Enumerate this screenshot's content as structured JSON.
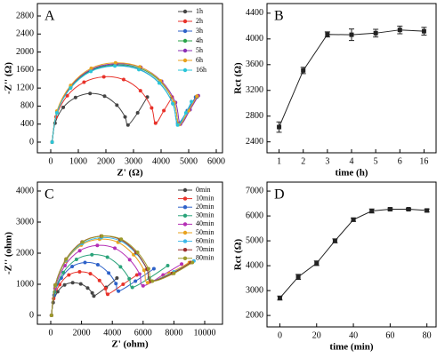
{
  "chart_data": [
    {
      "type": "line",
      "annotation": "A",
      "xlabel": "Z' (Ω)",
      "ylabel": "-Z'' (Ω)",
      "xlim": [
        -484,
        6226
      ],
      "xticks": [
        0,
        1000,
        2000,
        3000,
        4000,
        5000,
        6000
      ],
      "ylim": [
        -237,
        3076
      ],
      "yticks": [
        0,
        400,
        800,
        1200,
        1600,
        2000,
        2400,
        2800
      ],
      "legend": "upper right",
      "series": [
        {
          "name": "1h",
          "color": "#444444",
          "x": [
            50,
            155,
            453,
            899,
            1425,
            1951,
            2397,
            2695,
            2800,
            3150,
            3500
          ],
          "values": [
            0,
            420,
            770,
            990,
            1080,
            1020,
            820,
            560,
            380,
            650,
            1000
          ]
        },
        {
          "name": "2h",
          "color": "#e8322a",
          "x": [
            50,
            192,
            599,
            1207,
            1925,
            2643,
            3251,
            3658,
            3800,
            4100,
            4400
          ],
          "values": [
            0,
            560,
            1030,
            1330,
            1450,
            1390,
            1140,
            760,
            420,
            700,
            1000
          ]
        },
        {
          "name": "3h",
          "color": "#2e62c9",
          "x": [
            50,
            223,
            717,
            1454,
            2325,
            3196,
            3933,
            4427,
            4600,
            4950,
            5250
          ],
          "values": [
            0,
            660,
            1210,
            1580,
            1700,
            1620,
            1320,
            860,
            420,
            700,
            1000
          ]
        },
        {
          "name": "4h",
          "color": "#2aa34a",
          "x": [
            50,
            225,
            724,
            1468,
            2350,
            3232,
            3976,
            4474,
            4650,
            5000,
            5300
          ],
          "values": [
            0,
            670,
            1230,
            1600,
            1720,
            1640,
            1340,
            870,
            400,
            700,
            1000
          ]
        },
        {
          "name": "5h",
          "color": "#8b2fb5",
          "x": [
            50,
            227,
            731,
            1485,
            2375,
            3265,
            4019,
            4523,
            4700,
            5050,
            5350
          ],
          "values": [
            0,
            680,
            1250,
            1620,
            1740,
            1660,
            1350,
            880,
            400,
            720,
            1030
          ]
        },
        {
          "name": "6h",
          "color": "#e8a21e",
          "x": [
            50,
            225,
            724,
            1468,
            2350,
            3232,
            3976,
            4474,
            4650,
            5000,
            5300
          ],
          "values": [
            0,
            690,
            1260,
            1640,
            1760,
            1670,
            1360,
            880,
            390,
            700,
            1020
          ]
        },
        {
          "name": "16h",
          "color": "#2bc5d8",
          "x": [
            50,
            223,
            717,
            1454,
            2325,
            3196,
            3933,
            4427,
            4600,
            4900,
            5100
          ],
          "values": [
            0,
            650,
            1200,
            1570,
            1690,
            1610,
            1310,
            850,
            380,
            650,
            900
          ]
        }
      ]
    },
    {
      "type": "errorline",
      "annotation": "B",
      "xlabel": "time (h)",
      "ylabel": "Rct (Ω)",
      "categories": [
        "1",
        "2",
        "3",
        "4",
        "5",
        "6",
        "16"
      ],
      "values": [
        2630,
        3510,
        4070,
        4065,
        4090,
        4140,
        4120
      ],
      "errors": [
        80,
        50,
        40,
        90,
        60,
        60,
        60
      ],
      "color": "#222222",
      "ylim": [
        2230,
        4550
      ],
      "yticks": [
        2400,
        2800,
        3200,
        3600,
        4000,
        4400
      ]
    },
    {
      "type": "line",
      "annotation": "C",
      "xlabel": "Z' (ohm)",
      "ylabel": "-Z'' (ohm)",
      "xlim": [
        -867,
        11156
      ],
      "xticks": [
        0,
        2000,
        4000,
        6000,
        8000,
        10000
      ],
      "ylim": [
        -286,
        4286
      ],
      "yticks": [
        0,
        1000,
        2000,
        3000,
        4000
      ],
      "legend": "upper right",
      "series": [
        {
          "name": "0min",
          "color": "#444444",
          "x": [
            50,
            155,
            453,
            899,
            1425,
            1951,
            2397,
            2695,
            2800,
            3600,
            4300
          ],
          "values": [
            0,
            410,
            760,
            980,
            1050,
            1010,
            880,
            720,
            620,
            900,
            1200
          ]
        },
        {
          "name": "10min",
          "color": "#e8322a",
          "x": [
            50,
            189,
            585,
            1176,
            1875,
            2574,
            3165,
            3561,
            3700,
            4700,
            5600
          ],
          "values": [
            0,
            540,
            990,
            1300,
            1400,
            1340,
            1120,
            860,
            680,
            1000,
            1300
          ]
        },
        {
          "name": "20min",
          "color": "#2e62c9",
          "x": [
            50,
            215,
            687,
            1392,
            2225,
            3058,
            3763,
            4235,
            4400,
            5500,
            6700
          ],
          "values": [
            0,
            650,
            1200,
            1570,
            1700,
            1630,
            1360,
            1020,
            780,
            1100,
            1500
          ]
        },
        {
          "name": "30min",
          "color": "#2aa37a",
          "x": [
            50,
            250,
            819,
            1670,
            2675,
            3680,
            4531,
            5100,
            5300,
            6400,
            7600
          ],
          "values": [
            0,
            750,
            1380,
            1800,
            1950,
            1870,
            1560,
            1180,
            900,
            1200,
            1600
          ]
        },
        {
          "name": "40min",
          "color": "#b52fb5",
          "x": [
            50,
            276,
            922,
            1886,
            3025,
            4164,
            5128,
            5774,
            6000,
            7300,
            8500
          ],
          "values": [
            0,
            870,
            1600,
            2080,
            2250,
            2160,
            1790,
            1330,
            950,
            1300,
            1650
          ]
        },
        {
          "name": "50min",
          "color": "#e8a21e",
          "x": [
            50,
            287,
            966,
            1979,
            3175,
            4371,
            5384,
            6063,
            6300,
            7700,
            9000
          ],
          "values": [
            0,
            940,
            1740,
            2260,
            2450,
            2350,
            1950,
            1450,
            1050,
            1350,
            1700
          ]
        },
        {
          "name": "60min",
          "color": "#3cb8e8",
          "x": [
            50,
            295,
            995,
            2040,
            3275,
            4510,
            5555,
            6255,
            6500,
            8000,
            9300
          ],
          "values": [
            0,
            960,
            1780,
            2310,
            2500,
            2400,
            1990,
            1480,
            1100,
            1400,
            1750
          ]
        },
        {
          "name": "70min",
          "color": "#9b2d2d",
          "x": [
            50,
            295,
            995,
            2040,
            3275,
            4510,
            5555,
            6255,
            6500,
            7900,
            9100
          ],
          "values": [
            0,
            980,
            1810,
            2360,
            2550,
            2440,
            2020,
            1490,
            1100,
            1350,
            1700
          ]
        },
        {
          "name": "80min",
          "color": "#9c9a2a",
          "x": [
            50,
            299,
            1010,
            2072,
            3325,
            4578,
            5640,
            6350,
            6600,
            8000,
            9200
          ],
          "values": [
            0,
            980,
            1810,
            2360,
            2550,
            2450,
            2030,
            1500,
            1100,
            1350,
            1700
          ]
        }
      ]
    },
    {
      "type": "errorline",
      "annotation": "D",
      "xlabel": "time (min)",
      "ylabel": "Rct (Ω)",
      "x": [
        0,
        10,
        20,
        30,
        40,
        50,
        60,
        70,
        80
      ],
      "values": [
        2700,
        3550,
        4100,
        5000,
        5850,
        6200,
        6270,
        6270,
        6220
      ],
      "errors": [
        80,
        100,
        90,
        80,
        70,
        80,
        50,
        40,
        60
      ],
      "color": "#222222",
      "xlim": [
        -7,
        85
      ],
      "xticks": [
        0,
        20,
        40,
        60,
        80
      ],
      "ylim": [
        1540,
        7360
      ],
      "yticks": [
        2000,
        3000,
        4000,
        5000,
        6000,
        7000
      ]
    }
  ]
}
